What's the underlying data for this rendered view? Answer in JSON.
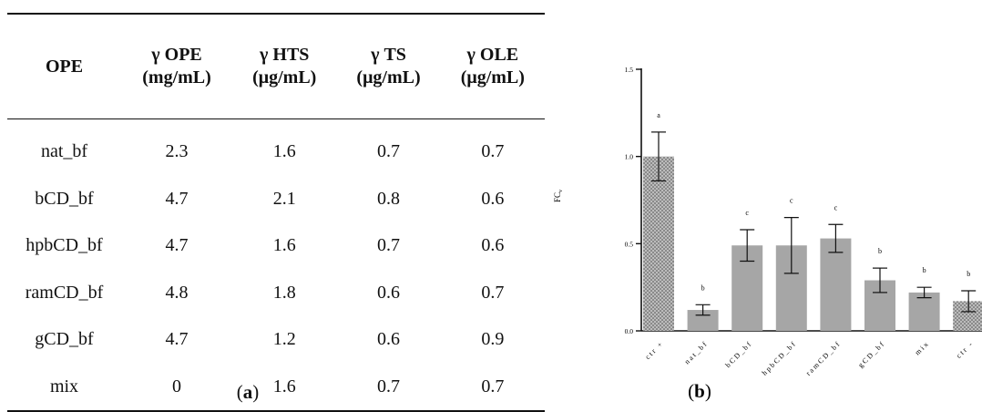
{
  "table": {
    "headers": [
      [
        "OPE",
        ""
      ],
      [
        "γ OPE",
        "(mg/mL)"
      ],
      [
        "γ HTS",
        "(μg/mL)"
      ],
      [
        "γ TS",
        "(μg/mL)"
      ],
      [
        "γ OLE",
        "(μg/mL)"
      ]
    ],
    "rows": [
      [
        "nat_bf",
        "2.3",
        "1.6",
        "0.7",
        "0.7"
      ],
      [
        "bCD_bf",
        "4.7",
        "2.1",
        "0.8",
        "0.6"
      ],
      [
        "hpbCD_bf",
        "4.7",
        "1.6",
        "0.7",
        "0.6"
      ],
      [
        "ramCD_bf",
        "4.8",
        "1.8",
        "0.6",
        "0.7"
      ],
      [
        "gCD_bf",
        "4.7",
        "1.2",
        "0.6",
        "0.9"
      ],
      [
        "mix",
        "0",
        "1.6",
        "0.7",
        "0.7"
      ]
    ]
  },
  "captions": {
    "a_open": "(",
    "a_letter": "a",
    "a_close": ")",
    "b_open": "(",
    "b_letter": "b",
    "b_close": ")"
  },
  "chart_data": {
    "type": "bar",
    "ylabel": "FC",
    "ylabel_sub": "v",
    "ylim": [
      0,
      1.5
    ],
    "yticks": [
      0.0,
      0.5,
      1.0,
      1.5
    ],
    "ytick_labels": [
      "0.0",
      "0.5",
      "1.0",
      "1.5"
    ],
    "categories": [
      "ctr +",
      "nat_bf",
      "bCD_bf",
      "hpbCD_bf",
      "ramCD_bf",
      "gCD_bf",
      "mix",
      "ctr -"
    ],
    "values": [
      1.0,
      0.12,
      0.49,
      0.49,
      0.53,
      0.29,
      0.22,
      0.17
    ],
    "errors": [
      0.14,
      0.03,
      0.09,
      0.16,
      0.08,
      0.07,
      0.03,
      0.06
    ],
    "significance_letters": [
      "a",
      "b",
      "c",
      "c",
      "c",
      "b",
      "b",
      "b"
    ],
    "patterned": [
      true,
      false,
      false,
      false,
      false,
      false,
      false,
      true
    ],
    "colors": {
      "bar": "#a6a6a6",
      "dotted_bar": "#bcbcbc",
      "dot": "#444444",
      "axis": "#111111"
    }
  }
}
